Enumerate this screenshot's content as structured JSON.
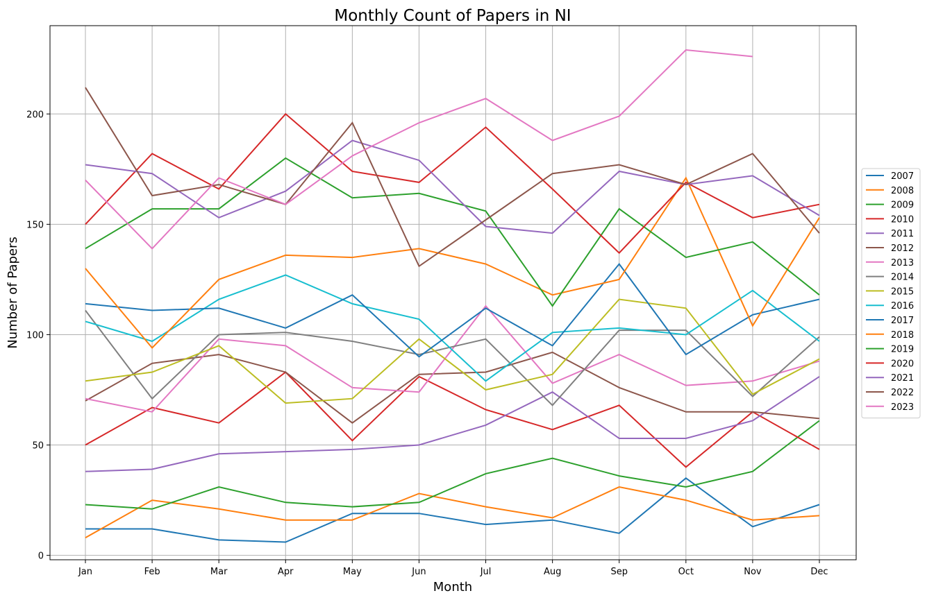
{
  "chart_data": {
    "type": "line",
    "title": "Monthly Count of Papers in NI",
    "xlabel": "Month",
    "ylabel": "Number of Papers",
    "categories": [
      "Jan",
      "Feb",
      "Mar",
      "Apr",
      "May",
      "Jun",
      "Jul",
      "Aug",
      "Sep",
      "Oct",
      "Nov",
      "Dec"
    ],
    "ylim": [
      -2,
      240
    ],
    "yticks": [
      0,
      50,
      100,
      150,
      200
    ],
    "grid": true,
    "legend_position": "right",
    "series": [
      {
        "name": "2007",
        "color": "#1f77b4",
        "values": [
          12,
          12,
          7,
          6,
          19,
          19,
          14,
          16,
          10,
          35,
          13,
          23
        ]
      },
      {
        "name": "2008",
        "color": "#ff7f0e",
        "values": [
          8,
          25,
          21,
          16,
          16,
          28,
          22,
          17,
          31,
          25,
          16,
          18
        ]
      },
      {
        "name": "2009",
        "color": "#2ca02c",
        "values": [
          23,
          21,
          31,
          24,
          22,
          24,
          37,
          44,
          36,
          31,
          38,
          61
        ]
      },
      {
        "name": "2010",
        "color": "#d62728",
        "values": [
          50,
          67,
          60,
          83,
          52,
          81,
          66,
          57,
          68,
          40,
          65,
          48
        ]
      },
      {
        "name": "2011",
        "color": "#9467bd",
        "values": [
          38,
          39,
          46,
          47,
          48,
          50,
          59,
          74,
          53,
          53,
          61,
          81
        ]
      },
      {
        "name": "2012",
        "color": "#8c564b",
        "values": [
          70,
          87,
          91,
          83,
          60,
          82,
          83,
          92,
          76,
          65,
          65,
          62
        ]
      },
      {
        "name": "2013",
        "color": "#e377c2",
        "values": [
          71,
          65,
          98,
          95,
          76,
          74,
          113,
          78,
          91,
          77,
          79,
          88
        ]
      },
      {
        "name": "2014",
        "color": "#7f7f7f",
        "values": [
          111,
          71,
          100,
          101,
          97,
          91,
          98,
          68,
          102,
          102,
          72,
          99
        ]
      },
      {
        "name": "2015",
        "color": "#bcbd22",
        "values": [
          79,
          83,
          95,
          69,
          71,
          98,
          75,
          82,
          116,
          112,
          73,
          89
        ]
      },
      {
        "name": "2016",
        "color": "#17becf",
        "values": [
          106,
          97,
          116,
          127,
          114,
          107,
          79,
          101,
          103,
          100,
          120,
          97
        ]
      },
      {
        "name": "2017",
        "color": "#1f77b4",
        "values": [
          114,
          111,
          112,
          103,
          118,
          90,
          112,
          95,
          132,
          91,
          109,
          116
        ]
      },
      {
        "name": "2018",
        "color": "#ff7f0e",
        "values": [
          130,
          94,
          125,
          136,
          135,
          139,
          132,
          118,
          125,
          171,
          104,
          153
        ]
      },
      {
        "name": "2019",
        "color": "#2ca02c",
        "values": [
          139,
          157,
          157,
          180,
          162,
          164,
          156,
          113,
          157,
          135,
          142,
          118
        ]
      },
      {
        "name": "2020",
        "color": "#d62728",
        "values": [
          150,
          182,
          166,
          200,
          174,
          169,
          194,
          166,
          137,
          169,
          153,
          159
        ]
      },
      {
        "name": "2021",
        "color": "#9467bd",
        "values": [
          177,
          173,
          153,
          165,
          188,
          179,
          149,
          146,
          174,
          168,
          172,
          154
        ]
      },
      {
        "name": "2022",
        "color": "#8c564b",
        "values": [
          212,
          163,
          168,
          159,
          196,
          131,
          152,
          173,
          177,
          168,
          182,
          146
        ]
      },
      {
        "name": "2023",
        "color": "#e377c2",
        "values": [
          170,
          139,
          171,
          159,
          181,
          196,
          207,
          188,
          199,
          229,
          226,
          null
        ]
      }
    ]
  }
}
